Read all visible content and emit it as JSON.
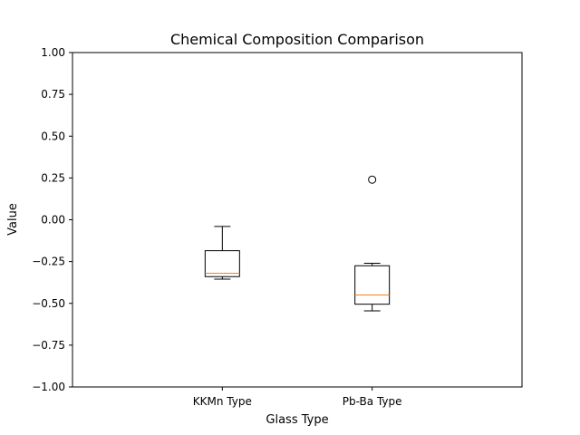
{
  "chart_data": {
    "type": "box",
    "title": "Chemical Composition Comparison",
    "xlabel": "Glass Type",
    "ylabel": "Value",
    "ylim": [
      -1.0,
      1.0
    ],
    "yticks": [
      "1.00",
      "0.75",
      "0.50",
      "0.25",
      "0.00",
      "−0.25",
      "−0.50",
      "−0.75",
      "−1.00"
    ],
    "ytick_values": [
      1.0,
      0.75,
      0.5,
      0.25,
      0.0,
      -0.25,
      -0.5,
      -0.75,
      -1.0
    ],
    "categories": [
      "KKMn Type",
      "Pb-Ba Type"
    ],
    "boxes": [
      {
        "category": "KKMn Type",
        "whisker_low": -0.355,
        "q1": -0.34,
        "median": -0.32,
        "q3": -0.185,
        "whisker_high": -0.04,
        "outliers": []
      },
      {
        "category": "Pb-Ba Type",
        "whisker_low": -0.545,
        "q1": -0.505,
        "median": -0.45,
        "q3": -0.275,
        "whisker_high": -0.26,
        "outliers": [
          0.24
        ]
      }
    ],
    "colors": {
      "box": "#000000",
      "median": "#ff7f0e",
      "background": "#ffffff"
    },
    "grid": false,
    "legend": "none"
  }
}
